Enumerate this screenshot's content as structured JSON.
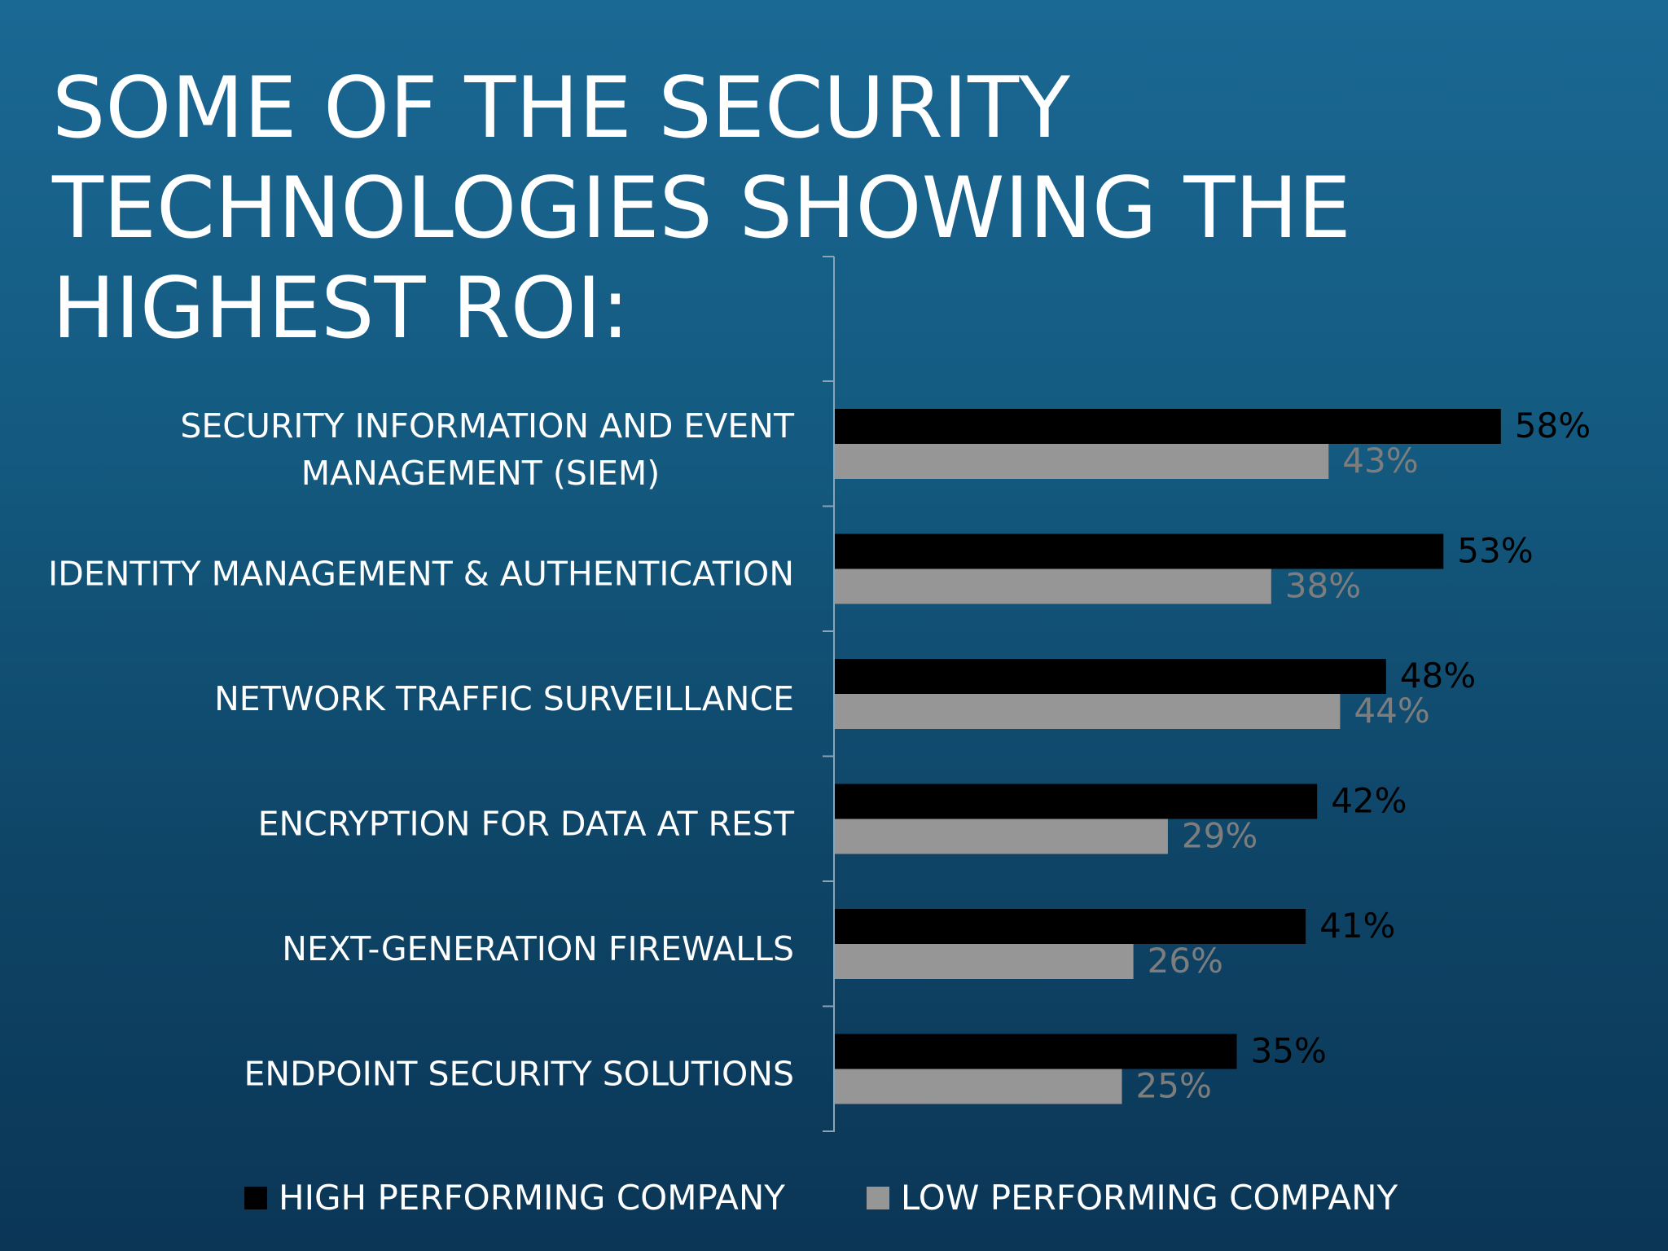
{
  "title_lines": [
    "SOME OF THE SECURITY",
    "TECHNOLOGIES SHOWING THE",
    "HIGHEST ROI:"
  ],
  "legend": [
    {
      "label": "HIGH PERFORMING COMPANY",
      "color": "#000000"
    },
    {
      "label": "LOW PERFORMING COMPANY",
      "color": "#969696"
    }
  ],
  "chart_data": {
    "type": "bar",
    "orientation": "horizontal",
    "title": "SOME OF THE SECURITY TECHNOLOGIES SHOWING THE HIGHEST ROI:",
    "categories": [
      "SECURITY INFORMATION AND EVENT MANAGEMENT (SIEM)",
      "IDENTITY MANAGEMENT & AUTHENTICATION",
      "NETWORK TRAFFIC SURVEILLANCE",
      "ENCRYPTION FOR DATA AT REST",
      "NEXT-GENERATION FIREWALLS",
      "ENDPOINT SECURITY SOLUTIONS"
    ],
    "category_label_lines": [
      [
        "SECURITY INFORMATION AND EVENT",
        "MANAGEMENT (SIEM)"
      ],
      [
        "IDENTITY MANAGEMENT & AUTHENTICATION"
      ],
      [
        "NETWORK TRAFFIC SURVEILLANCE"
      ],
      [
        "ENCRYPTION FOR DATA AT REST"
      ],
      [
        "NEXT-GENERATION FIREWALLS"
      ],
      [
        "ENDPOINT SECURITY SOLUTIONS"
      ]
    ],
    "series": [
      {
        "name": "HIGH PERFORMING COMPANY",
        "color": "#000000",
        "values": [
          58,
          53,
          48,
          42,
          41,
          35
        ],
        "labels": [
          "58%",
          "53%",
          "48%",
          "42%",
          "41%",
          "35%"
        ]
      },
      {
        "name": "LOW PERFORMING COMPANY",
        "color": "#969696",
        "values": [
          43,
          38,
          44,
          29,
          26,
          25
        ],
        "labels": [
          "43%",
          "38%",
          "44%",
          "29%",
          "26%",
          "25%"
        ]
      }
    ],
    "unit": "%",
    "xlim": [
      0,
      65
    ],
    "grid": false,
    "legend_position": "bottom"
  }
}
